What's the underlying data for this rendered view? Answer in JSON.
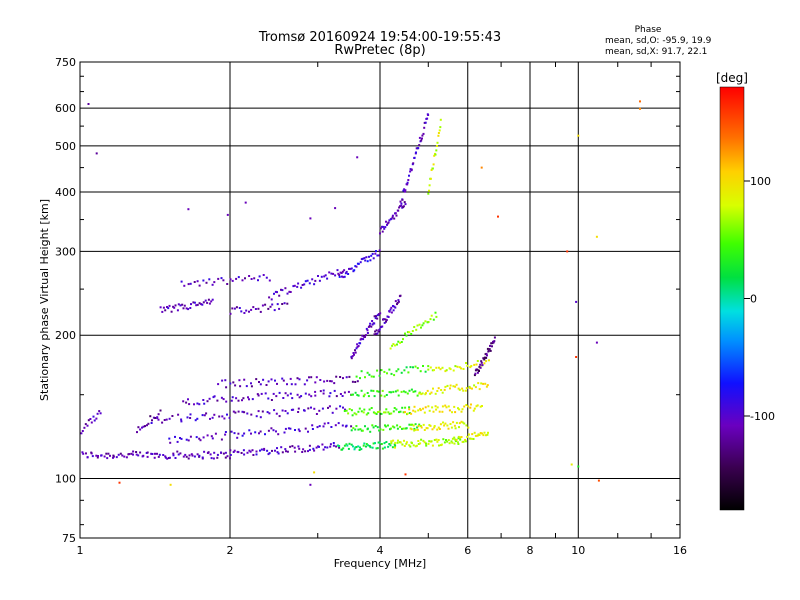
{
  "chart_data": {
    "type": "scatter",
    "title": "Tromsø 20160924 19:54:00-19:55:43",
    "subtitle": "RwPretec (8p)",
    "xlabel": "Frequency [MHz]",
    "ylabel": "Stationary phase Virtual Height [km]",
    "xscale": "log",
    "yscale": "log",
    "xlim": [
      1,
      16
    ],
    "ylim": [
      75,
      750
    ],
    "x_ticks": [
      "1",
      "2",
      "4",
      "6",
      "8",
      "10",
      "16"
    ],
    "y_ticks": [
      "75",
      "100",
      "200",
      "300",
      "400",
      "500",
      "600",
      "750"
    ],
    "grid": true,
    "stats": {
      "heading": "Phase",
      "line_o": "mean, sd,O: -95.9, 19.9",
      "line_x": "mean, sd,X:  91.7, 22.1"
    },
    "colorbar": {
      "label": "[deg]",
      "range": [
        -180,
        180
      ],
      "ticks": [
        "100",
        "0",
        "-100"
      ],
      "tick_values": [
        100,
        0,
        -100
      ]
    },
    "traces": [
      {
        "x_range": [
          1.0,
          2.0
        ],
        "y_start": 112,
        "y_end": 112,
        "phase": -110,
        "pts": 90
      },
      {
        "x_range": [
          2.0,
          3.3
        ],
        "y_start": 113,
        "y_end": 117,
        "phase": -105,
        "pts": 60
      },
      {
        "x_range": [
          3.3,
          4.3
        ],
        "y_start": 116,
        "y_end": 118,
        "phase": 20,
        "pts": 45
      },
      {
        "x_range": [
          4.2,
          5.8
        ],
        "y_start": 118,
        "y_end": 120,
        "phase": 70,
        "pts": 55
      },
      {
        "x_range": [
          5.6,
          6.6
        ],
        "y_start": 120,
        "y_end": 125,
        "phase": 85,
        "pts": 30
      },
      {
        "x_range": [
          1.5,
          3.5
        ],
        "y_start": 120,
        "y_end": 130,
        "phase": -100,
        "pts": 60
      },
      {
        "x_range": [
          3.5,
          4.8
        ],
        "y_start": 127,
        "y_end": 128,
        "phase": 40,
        "pts": 40
      },
      {
        "x_range": [
          4.6,
          6.0
        ],
        "y_start": 128,
        "y_end": 130,
        "phase": 90,
        "pts": 40
      },
      {
        "x_range": [
          1.4,
          3.4
        ],
        "y_start": 133,
        "y_end": 140,
        "phase": -105,
        "pts": 65
      },
      {
        "x_range": [
          3.4,
          4.6
        ],
        "y_start": 138,
        "y_end": 139,
        "phase": 50,
        "pts": 40
      },
      {
        "x_range": [
          4.5,
          6.4
        ],
        "y_start": 139,
        "y_end": 141,
        "phase": 95,
        "pts": 45
      },
      {
        "x_range": [
          1.6,
          3.5
        ],
        "y_start": 145,
        "y_end": 152,
        "phase": -105,
        "pts": 60
      },
      {
        "x_range": [
          3.5,
          4.8
        ],
        "y_start": 150,
        "y_end": 152,
        "phase": 40,
        "pts": 35
      },
      {
        "x_range": [
          4.8,
          6.6
        ],
        "y_start": 152,
        "y_end": 157,
        "phase": 90,
        "pts": 40
      },
      {
        "x_range": [
          1.9,
          3.6
        ],
        "y_start": 158,
        "y_end": 162,
        "phase": -110,
        "pts": 50
      },
      {
        "x_range": [
          3.6,
          5.0
        ],
        "y_start": 165,
        "y_end": 170,
        "phase": 35,
        "pts": 30
      },
      {
        "x_range": [
          5.0,
          6.6
        ],
        "y_start": 168,
        "y_end": 175,
        "phase": 80,
        "pts": 30
      },
      {
        "x_range": [
          1.45,
          1.85
        ],
        "y_start": 225,
        "y_end": 235,
        "phase": -105,
        "pts": 35
      },
      {
        "x_range": [
          1.6,
          2.4
        ],
        "y_start": 255,
        "y_end": 265,
        "phase": -105,
        "pts": 30
      },
      {
        "x_range": [
          2.0,
          2.6
        ],
        "y_start": 225,
        "y_end": 230,
        "phase": -110,
        "pts": 25
      },
      {
        "x_range": [
          2.4,
          3.4
        ],
        "y_start": 240,
        "y_end": 275,
        "phase": -100,
        "pts": 40
      },
      {
        "x_range": [
          3.3,
          4.0
        ],
        "y_start": 265,
        "y_end": 300,
        "phase": -90,
        "pts": 35
      },
      {
        "x_range": [
          3.5,
          4.0
        ],
        "y_start": 180,
        "y_end": 225,
        "phase": -105,
        "pts": 40
      },
      {
        "x_range": [
          3.9,
          4.4
        ],
        "y_start": 200,
        "y_end": 240,
        "phase": -110,
        "pts": 35
      },
      {
        "x_range": [
          4.2,
          5.2
        ],
        "y_start": 190,
        "y_end": 220,
        "phase": 60,
        "pts": 30
      },
      {
        "x_range": [
          4.0,
          4.5
        ],
        "y_start": 330,
        "y_end": 380,
        "phase": -110,
        "pts": 30
      },
      {
        "x_range": [
          4.4,
          5.0
        ],
        "y_start": 380,
        "y_end": 580,
        "phase": -105,
        "pts": 40
      },
      {
        "x_range": [
          5.0,
          5.3
        ],
        "y_start": 400,
        "y_end": 560,
        "phase": 80,
        "pts": 20
      },
      {
        "x_range": [
          6.2,
          6.8
        ],
        "y_start": 165,
        "y_end": 195,
        "phase": -130,
        "pts": 35
      },
      {
        "x_range": [
          1.0,
          1.1
        ],
        "y_start": 125,
        "y_end": 138,
        "phase": -110,
        "pts": 15
      },
      {
        "x_range": [
          1.3,
          1.45
        ],
        "y_start": 127,
        "y_end": 138,
        "phase": -120,
        "pts": 15
      }
    ],
    "isolated_points": [
      {
        "x": 1.04,
        "y": 612,
        "phase": -120
      },
      {
        "x": 1.08,
        "y": 482,
        "phase": -120
      },
      {
        "x": 1.2,
        "y": 98,
        "phase": 160
      },
      {
        "x": 1.52,
        "y": 97,
        "phase": 100
      },
      {
        "x": 1.65,
        "y": 368,
        "phase": -110
      },
      {
        "x": 1.98,
        "y": 358,
        "phase": -110
      },
      {
        "x": 2.15,
        "y": 380,
        "phase": -110
      },
      {
        "x": 2.9,
        "y": 97,
        "phase": -110
      },
      {
        "x": 2.95,
        "y": 103,
        "phase": 100
      },
      {
        "x": 2.9,
        "y": 352,
        "phase": -110
      },
      {
        "x": 3.25,
        "y": 370,
        "phase": -110
      },
      {
        "x": 3.6,
        "y": 473,
        "phase": -110
      },
      {
        "x": 4.5,
        "y": 102,
        "phase": 160
      },
      {
        "x": 6.4,
        "y": 450,
        "phase": 130
      },
      {
        "x": 6.9,
        "y": 355,
        "phase": 160
      },
      {
        "x": 9.5,
        "y": 300,
        "phase": 160
      },
      {
        "x": 9.7,
        "y": 107,
        "phase": 90
      },
      {
        "x": 9.9,
        "y": 180,
        "phase": 160
      },
      {
        "x": 9.9,
        "y": 235,
        "phase": -100
      },
      {
        "x": 10.0,
        "y": 106,
        "phase": 30
      },
      {
        "x": 10.0,
        "y": 525,
        "phase": 100
      },
      {
        "x": 10.9,
        "y": 322,
        "phase": 100
      },
      {
        "x": 10.9,
        "y": 193,
        "phase": -110
      },
      {
        "x": 11.0,
        "y": 99,
        "phase": 150
      },
      {
        "x": 13.3,
        "y": 620,
        "phase": 140
      },
      {
        "x": 13.3,
        "y": 598,
        "phase": 130
      }
    ]
  }
}
